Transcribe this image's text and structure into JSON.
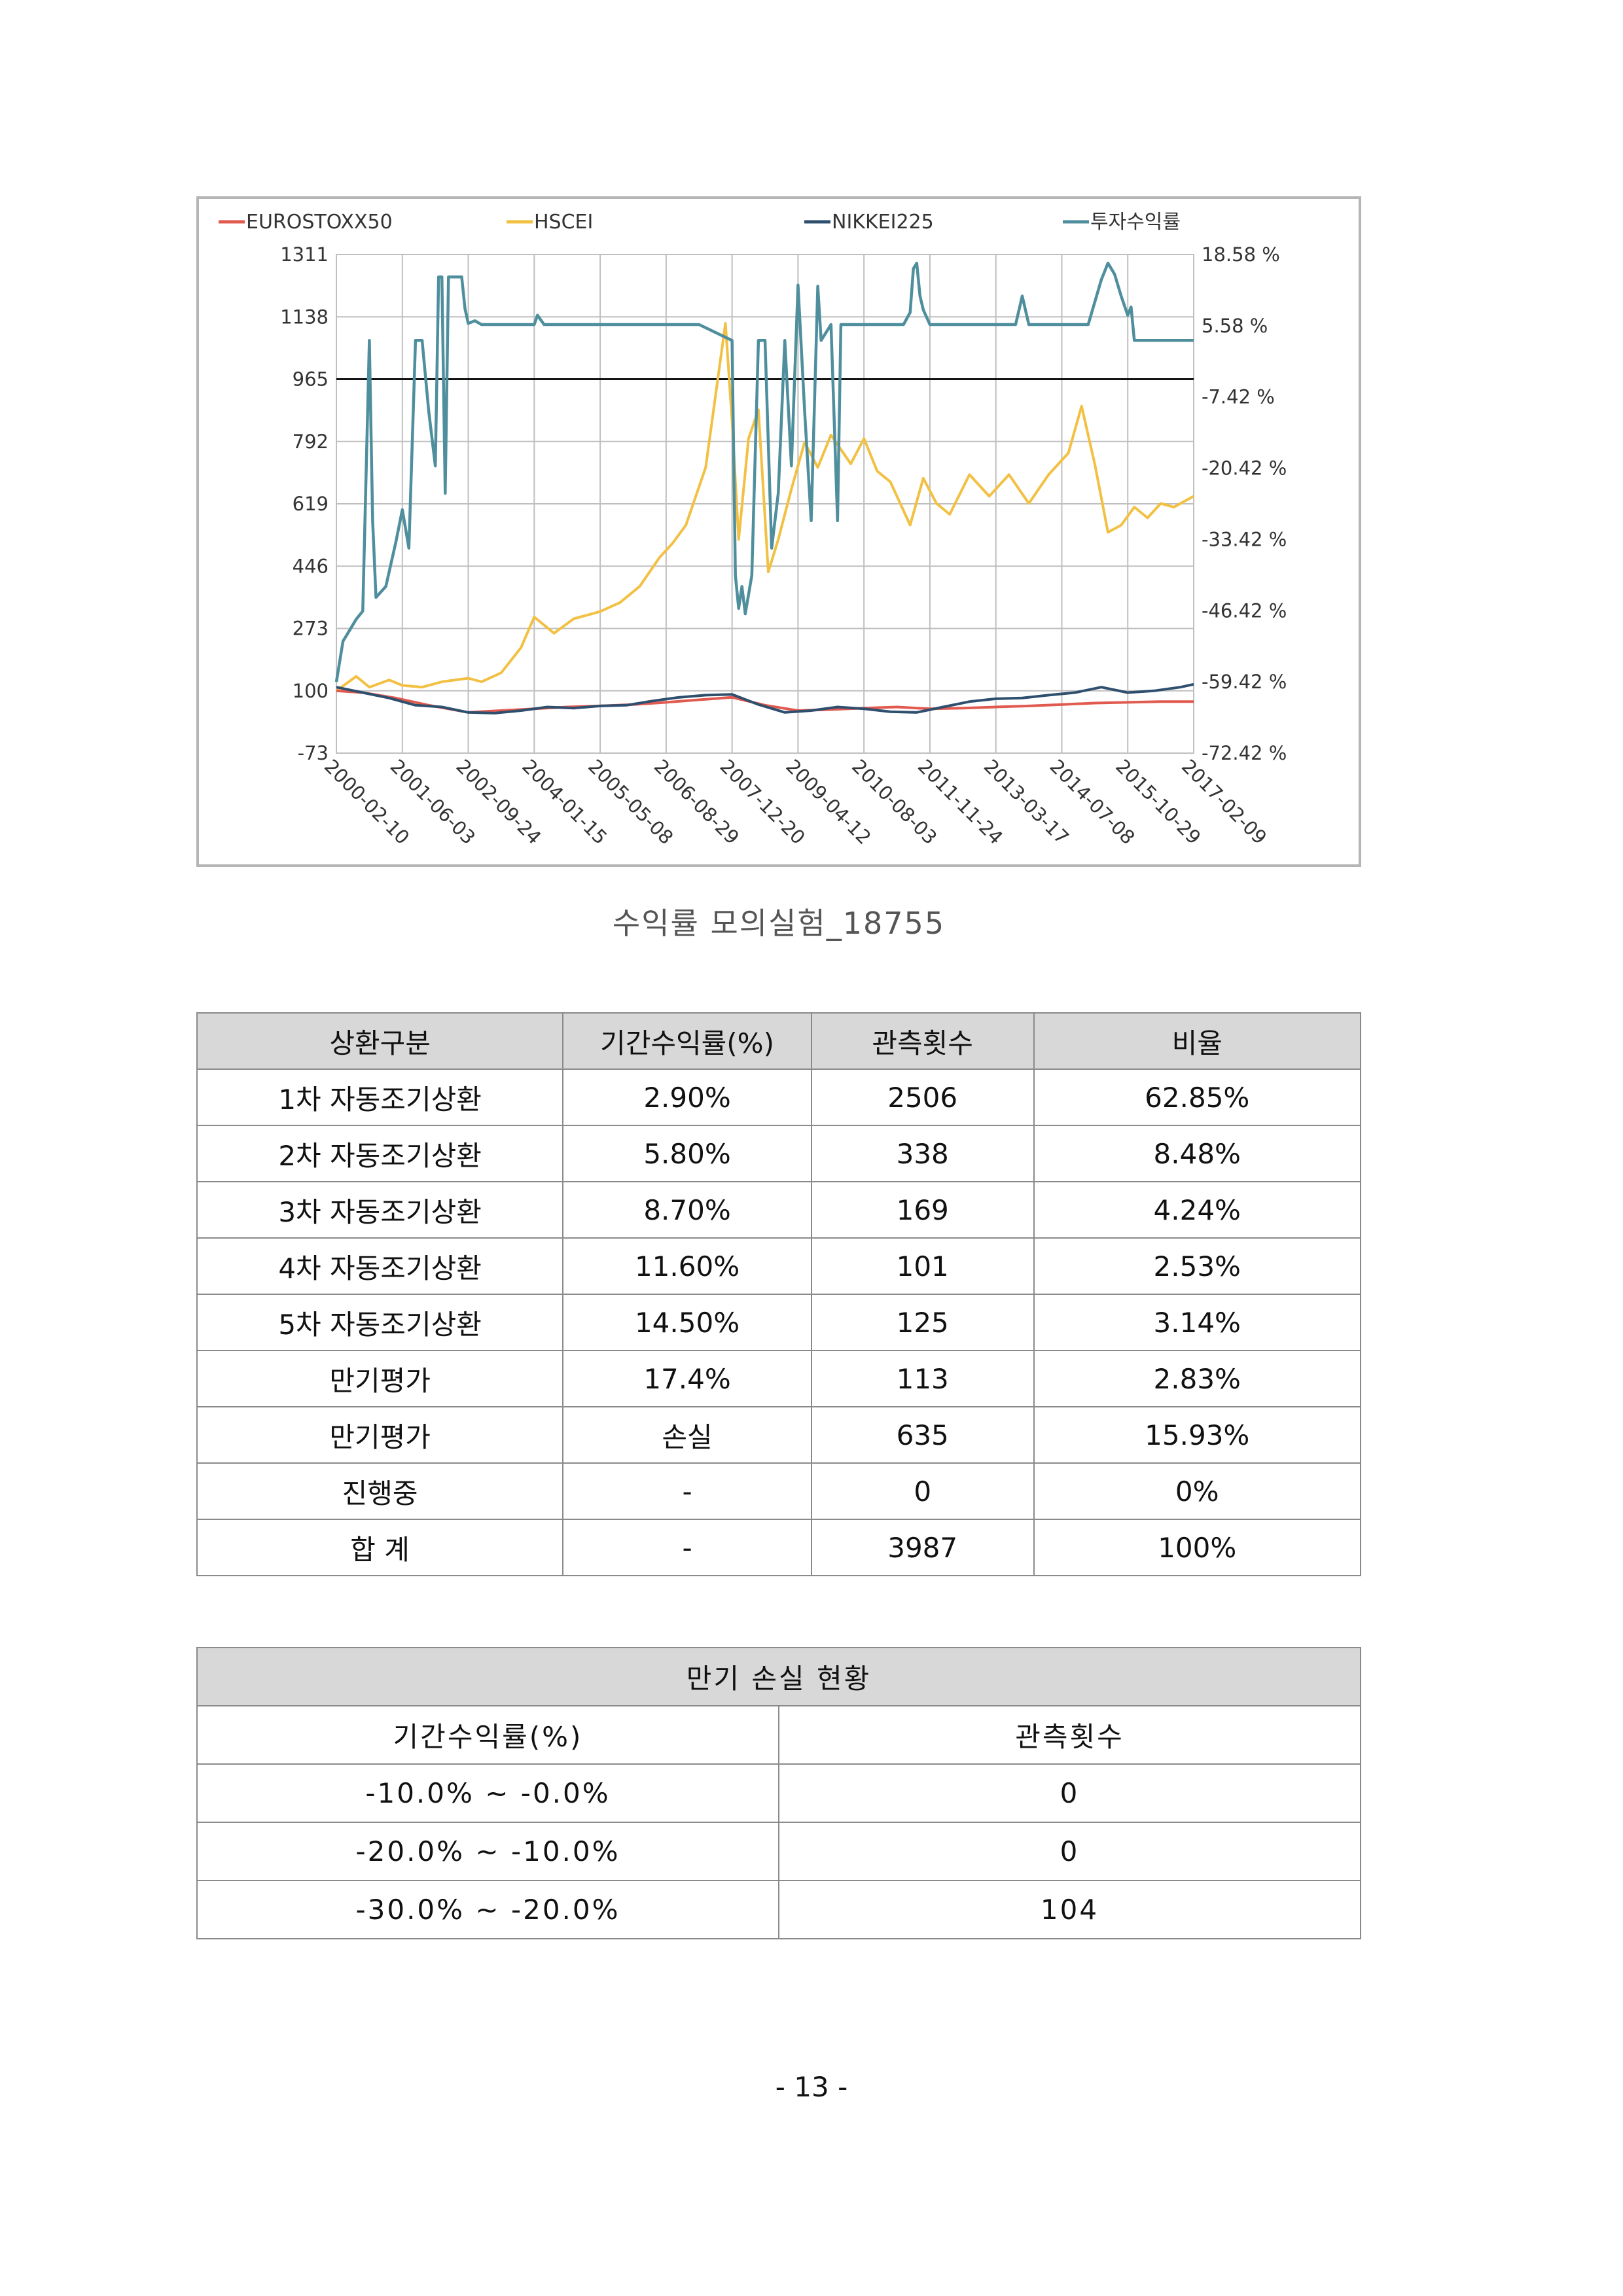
{
  "chart_data": {
    "type": "line",
    "legend": [
      "EUROSTOXX50",
      "HSCEI",
      "NIKKEI225",
      "투자수익률"
    ],
    "legend_position": "top",
    "colors": {
      "EUROSTOXX50": "#e15a4f",
      "HSCEI": "#f2c043",
      "NIKKEI225": "#2e4f6e",
      "투자수익률": "#4f8f9d"
    },
    "y_left_ticks": [
      "1311",
      "1138",
      "965",
      "792",
      "619",
      "446",
      "273",
      "100",
      "-73"
    ],
    "y_left_range": [
      -73,
      1311
    ],
    "y_right_ticks": [
      "18.58 %",
      "5.58 %",
      "-7.42 %",
      "-20.42 %",
      "-33.42 %",
      "-46.42 %",
      "-59.42 %",
      "-72.42 %"
    ],
    "y_right_range": [
      -72.42,
      18.58
    ],
    "x_ticks": [
      "2000-02-10",
      "2001-06-03",
      "2002-09-24",
      "2004-01-15",
      "2005-05-08",
      "2006-08-29",
      "2007-12-20",
      "2009-04-12",
      "2010-08-03",
      "2011-11-24",
      "2013-03-17",
      "2014-07-08",
      "2015-10-29",
      "2017-02-09"
    ],
    "reference_line": 965,
    "grid": true,
    "series": [
      {
        "name": "EUROSTOXX50",
        "axis": "left",
        "points": [
          [
            0,
            100
          ],
          [
            0.4,
            95
          ],
          [
            0.9,
            80
          ],
          [
            1.4,
            60
          ],
          [
            2,
            40
          ],
          [
            2.5,
            45
          ],
          [
            3,
            50
          ],
          [
            3.5,
            55
          ],
          [
            4,
            58
          ],
          [
            4.5,
            62
          ],
          [
            5,
            68
          ],
          [
            5.5,
            75
          ],
          [
            6,
            82
          ],
          [
            6.5,
            60
          ],
          [
            7,
            45
          ],
          [
            7.5,
            48
          ],
          [
            8,
            52
          ],
          [
            8.5,
            55
          ],
          [
            9,
            50
          ],
          [
            9.5,
            52
          ],
          [
            10,
            55
          ],
          [
            10.5,
            58
          ],
          [
            11,
            62
          ],
          [
            11.5,
            66
          ],
          [
            12,
            68
          ],
          [
            12.5,
            70
          ],
          [
            13,
            70
          ]
        ]
      },
      {
        "name": "HSCEI",
        "axis": "left",
        "points": [
          [
            0,
            100
          ],
          [
            0.3,
            140
          ],
          [
            0.5,
            110
          ],
          [
            0.8,
            130
          ],
          [
            1,
            115
          ],
          [
            1.3,
            110
          ],
          [
            1.6,
            125
          ],
          [
            2,
            135
          ],
          [
            2.2,
            125
          ],
          [
            2.5,
            150
          ],
          [
            2.8,
            220
          ],
          [
            3,
            305
          ],
          [
            3.3,
            260
          ],
          [
            3.6,
            300
          ],
          [
            4,
            320
          ],
          [
            4.3,
            345
          ],
          [
            4.6,
            390
          ],
          [
            4.9,
            470
          ],
          [
            5.1,
            510
          ],
          [
            5.3,
            560
          ],
          [
            5.6,
            720
          ],
          [
            5.9,
            1120
          ],
          [
            6,
            850
          ],
          [
            6.1,
            520
          ],
          [
            6.25,
            800
          ],
          [
            6.4,
            880
          ],
          [
            6.55,
            430
          ],
          [
            6.7,
            520
          ],
          [
            6.9,
            660
          ],
          [
            7.1,
            790
          ],
          [
            7.3,
            720
          ],
          [
            7.5,
            810
          ],
          [
            7.8,
            730
          ],
          [
            8,
            800
          ],
          [
            8.2,
            710
          ],
          [
            8.4,
            680
          ],
          [
            8.7,
            560
          ],
          [
            8.9,
            690
          ],
          [
            9.1,
            620
          ],
          [
            9.3,
            590
          ],
          [
            9.6,
            700
          ],
          [
            9.9,
            640
          ],
          [
            10.2,
            700
          ],
          [
            10.5,
            620
          ],
          [
            10.8,
            700
          ],
          [
            11.1,
            760
          ],
          [
            11.3,
            890
          ],
          [
            11.5,
            730
          ],
          [
            11.7,
            540
          ],
          [
            11.9,
            560
          ],
          [
            12.1,
            610
          ],
          [
            12.3,
            580
          ],
          [
            12.5,
            620
          ],
          [
            12.7,
            610
          ],
          [
            13,
            640
          ]
        ]
      },
      {
        "name": "NIKKEI225",
        "axis": "left",
        "points": [
          [
            0,
            110
          ],
          [
            0.4,
            95
          ],
          [
            0.8,
            80
          ],
          [
            1.2,
            60
          ],
          [
            1.6,
            55
          ],
          [
            2,
            40
          ],
          [
            2.4,
            38
          ],
          [
            2.8,
            45
          ],
          [
            3.2,
            55
          ],
          [
            3.6,
            52
          ],
          [
            4,
            58
          ],
          [
            4.4,
            60
          ],
          [
            4.8,
            72
          ],
          [
            5.2,
            82
          ],
          [
            5.6,
            88
          ],
          [
            6,
            90
          ],
          [
            6.4,
            62
          ],
          [
            6.8,
            40
          ],
          [
            7.2,
            45
          ],
          [
            7.6,
            55
          ],
          [
            8,
            50
          ],
          [
            8.4,
            42
          ],
          [
            8.8,
            40
          ],
          [
            9.2,
            55
          ],
          [
            9.6,
            70
          ],
          [
            10,
            78
          ],
          [
            10.4,
            80
          ],
          [
            10.8,
            88
          ],
          [
            11.2,
            95
          ],
          [
            11.6,
            110
          ],
          [
            12,
            95
          ],
          [
            12.4,
            100
          ],
          [
            12.8,
            110
          ],
          [
            13,
            118
          ]
        ]
      },
      {
        "name": "투자수익률",
        "axis": "right",
        "points": [
          [
            0,
            -59.42
          ],
          [
            0.1,
            -52
          ],
          [
            0.2,
            -50
          ],
          [
            0.3,
            -48
          ],
          [
            0.4,
            -46.5
          ],
          [
            0.5,
            2.9
          ],
          [
            0.55,
            -30
          ],
          [
            0.6,
            -44
          ],
          [
            0.75,
            -42
          ],
          [
            0.9,
            -34
          ],
          [
            1,
            -28
          ],
          [
            1.1,
            -35
          ],
          [
            1.2,
            2.9
          ],
          [
            1.3,
            2.9
          ],
          [
            1.4,
            -10
          ],
          [
            1.5,
            -20
          ],
          [
            1.55,
            14.5
          ],
          [
            1.6,
            14.5
          ],
          [
            1.65,
            -25
          ],
          [
            1.7,
            14.5
          ],
          [
            1.8,
            14.5
          ],
          [
            1.9,
            14.5
          ],
          [
            1.95,
            8.7
          ],
          [
            2,
            6
          ],
          [
            2.1,
            6.5
          ],
          [
            2.2,
            5.8
          ],
          [
            2.3,
            5.8
          ],
          [
            2.5,
            5.8
          ],
          [
            2.6,
            5.8
          ],
          [
            3,
            5.8
          ],
          [
            3.05,
            7.5
          ],
          [
            3.15,
            5.8
          ],
          [
            4,
            5.8
          ],
          [
            5,
            5.8
          ],
          [
            5.5,
            5.8
          ],
          [
            6,
            2.9
          ],
          [
            6.05,
            -40
          ],
          [
            6.1,
            -46
          ],
          [
            6.15,
            -42
          ],
          [
            6.2,
            -47
          ],
          [
            6.3,
            -40
          ],
          [
            6.4,
            2.9
          ],
          [
            6.5,
            2.9
          ],
          [
            6.6,
            -35
          ],
          [
            6.7,
            -25
          ],
          [
            6.8,
            2.9
          ],
          [
            6.9,
            -20
          ],
          [
            7,
            13
          ],
          [
            7.1,
            -10
          ],
          [
            7.2,
            -30
          ],
          [
            7.3,
            12.8
          ],
          [
            7.35,
            2.9
          ],
          [
            7.5,
            5.8
          ],
          [
            7.6,
            -30
          ],
          [
            7.65,
            5.8
          ],
          [
            7.8,
            5.8
          ],
          [
            8,
            5.8
          ],
          [
            8.2,
            5.8
          ],
          [
            8.4,
            5.8
          ],
          [
            8.6,
            5.8
          ],
          [
            8.7,
            8
          ],
          [
            8.75,
            16
          ],
          [
            8.8,
            17
          ],
          [
            8.85,
            11
          ],
          [
            8.9,
            8.5
          ],
          [
            9,
            5.8
          ],
          [
            9.2,
            5.8
          ],
          [
            9.4,
            5.8
          ],
          [
            9.6,
            5.8
          ],
          [
            9.8,
            5.8
          ],
          [
            10,
            5.8
          ],
          [
            10.2,
            5.8
          ],
          [
            10.3,
            5.8
          ],
          [
            10.4,
            11
          ],
          [
            10.5,
            5.8
          ],
          [
            10.7,
            5.8
          ],
          [
            10.9,
            5.8
          ],
          [
            11,
            5.8
          ],
          [
            11.2,
            5.8
          ],
          [
            11.4,
            5.8
          ],
          [
            11.6,
            14
          ],
          [
            11.7,
            17
          ],
          [
            11.8,
            15
          ],
          [
            11.9,
            11
          ],
          [
            12,
            7.5
          ],
          [
            12.05,
            9
          ],
          [
            12.1,
            2.9
          ],
          [
            12.2,
            2.9
          ],
          [
            12.5,
            2.9
          ],
          [
            12.8,
            2.9
          ],
          [
            13,
            2.9
          ]
        ]
      }
    ]
  },
  "caption": "수익률 모의실험_18755",
  "redemption_table": {
    "headers": [
      "상환구분",
      "기간수익률(%)",
      "관측횟수",
      "비율"
    ],
    "rows": [
      [
        "1차 자동조기상환",
        "2.90%",
        "2506",
        "62.85%"
      ],
      [
        "2차 자동조기상환",
        "5.80%",
        "338",
        "8.48%"
      ],
      [
        "3차 자동조기상환",
        "8.70%",
        "169",
        "4.24%"
      ],
      [
        "4차 자동조기상환",
        "11.60%",
        "101",
        "2.53%"
      ],
      [
        "5차 자동조기상환",
        "14.50%",
        "125",
        "3.14%"
      ],
      [
        "만기평가",
        "17.4%",
        "113",
        "2.83%"
      ],
      [
        "만기평가",
        "손실",
        "635",
        "15.93%"
      ],
      [
        "진행중",
        "-",
        "0",
        "0%"
      ],
      [
        "합 계",
        "-",
        "3987",
        "100%"
      ]
    ]
  },
  "loss_table": {
    "title": "만기 손실 현황",
    "headers": [
      "기간수익률(%)",
      "관측횟수"
    ],
    "rows": [
      [
        "-10.0% ~ -0.0%",
        "0"
      ],
      [
        "-20.0% ~ -10.0%",
        "0"
      ],
      [
        "-30.0% ~ -20.0%",
        "104"
      ]
    ]
  },
  "page_number": "- 13 -"
}
